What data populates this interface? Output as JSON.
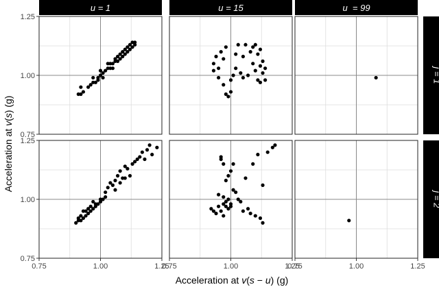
{
  "figure": {
    "background": "#ffffff",
    "panel_border": "#222222",
    "strip_fill": "#000000",
    "strip_text_color": "#ffffff",
    "point_color": "#000000",
    "ref_line_color": "#888888",
    "grid_color": "#dddddd"
  },
  "chart_data": {
    "type": "scatter",
    "xlabel_parts": [
      "Acceleration at ",
      "v",
      "(",
      "s",
      " − ",
      "u",
      ") (g)"
    ],
    "ylabel_parts": [
      "Acceleration at ",
      "v",
      "(",
      "s",
      ") (g)"
    ],
    "xlim": [
      0.75,
      1.25
    ],
    "ylim": [
      0.75,
      1.25
    ],
    "x_ticks": [
      0.75,
      1.0,
      1.25
    ],
    "y_ticks": [
      0.75,
      1.0,
      1.25
    ],
    "x_tick_labels": [
      "0.75",
      "1.00",
      "1.25"
    ],
    "y_tick_labels": [
      "0.75",
      "1.00",
      "1.25"
    ],
    "reference_lines": {
      "x": 1.0,
      "y": 1.0
    },
    "grid": true,
    "col_strips": [
      "u = 1",
      "u = 15",
      "u  = 99"
    ],
    "row_strips": [
      "j = 1",
      "j = 2"
    ],
    "panels": [
      {
        "row": 0,
        "col": 0,
        "points": [
          [
            0.91,
            0.92
          ],
          [
            0.92,
            0.92
          ],
          [
            0.92,
            0.95
          ],
          [
            0.93,
            0.93
          ],
          [
            0.95,
            0.95
          ],
          [
            0.96,
            0.96
          ],
          [
            0.97,
            0.97
          ],
          [
            0.98,
            0.97
          ],
          [
            0.99,
            0.99
          ],
          [
            0.99,
            0.98
          ],
          [
            1.0,
            1.0
          ],
          [
            1.01,
            1.01
          ],
          [
            1.01,
            0.99
          ],
          [
            1.02,
            1.02
          ],
          [
            1.03,
            1.03
          ],
          [
            1.04,
            1.03
          ],
          [
            1.04,
            1.05
          ],
          [
            1.05,
            1.05
          ],
          [
            1.06,
            1.06
          ],
          [
            1.06,
            1.07
          ],
          [
            1.07,
            1.08
          ],
          [
            1.07,
            1.06
          ],
          [
            1.08,
            1.09
          ],
          [
            1.08,
            1.07
          ],
          [
            1.09,
            1.1
          ],
          [
            1.09,
            1.08
          ],
          [
            1.1,
            1.11
          ],
          [
            1.1,
            1.09
          ],
          [
            1.11,
            1.12
          ],
          [
            1.11,
            1.1
          ],
          [
            1.12,
            1.13
          ],
          [
            1.12,
            1.11
          ],
          [
            1.13,
            1.14
          ],
          [
            1.13,
            1.12
          ],
          [
            1.14,
            1.14
          ],
          [
            1.14,
            1.13
          ],
          [
            0.97,
            0.99
          ],
          [
            1.0,
            1.02
          ],
          [
            1.03,
            1.05
          ],
          [
            1.05,
            1.03
          ]
        ]
      },
      {
        "row": 0,
        "col": 1,
        "points": [
          [
            0.93,
            1.05
          ],
          [
            0.93,
            1.02
          ],
          [
            0.94,
            1.08
          ],
          [
            0.95,
            0.99
          ],
          [
            0.96,
            1.1
          ],
          [
            0.97,
            0.96
          ],
          [
            0.98,
            1.12
          ],
          [
            0.98,
            0.92
          ],
          [
            0.99,
            0.91
          ],
          [
            1.0,
            0.93
          ],
          [
            1.0,
            0.98
          ],
          [
            1.01,
            1.0
          ],
          [
            1.02,
            1.03
          ],
          [
            1.03,
            1.13
          ],
          [
            1.04,
            1.01
          ],
          [
            1.05,
            0.99
          ],
          [
            1.05,
            1.08
          ],
          [
            1.06,
            1.13
          ],
          [
            1.07,
            1.0
          ],
          [
            1.08,
            1.1
          ],
          [
            1.09,
            1.12
          ],
          [
            1.09,
            1.05
          ],
          [
            1.1,
            1.13
          ],
          [
            1.1,
            1.02
          ],
          [
            1.11,
            0.98
          ],
          [
            1.11,
            1.09
          ],
          [
            1.12,
            1.04
          ],
          [
            1.12,
            0.97
          ],
          [
            1.13,
            1.06
          ],
          [
            1.13,
            1.01
          ],
          [
            1.14,
            0.98
          ],
          [
            1.14,
            1.03
          ],
          [
            0.95,
            1.03
          ],
          [
            0.97,
            1.07
          ],
          [
            1.02,
            1.09
          ],
          [
            1.12,
            1.11
          ]
        ]
      },
      {
        "row": 0,
        "col": 2,
        "points": [
          [
            1.08,
            0.99
          ]
        ]
      },
      {
        "row": 1,
        "col": 0,
        "points": [
          [
            0.9,
            0.9
          ],
          [
            0.91,
            0.91
          ],
          [
            0.91,
            0.92
          ],
          [
            0.92,
            0.91
          ],
          [
            0.92,
            0.93
          ],
          [
            0.93,
            0.92
          ],
          [
            0.94,
            0.93
          ],
          [
            0.94,
            0.95
          ],
          [
            0.95,
            0.94
          ],
          [
            0.95,
            0.96
          ],
          [
            0.96,
            0.95
          ],
          [
            0.96,
            0.97
          ],
          [
            0.97,
            0.96
          ],
          [
            0.98,
            0.98
          ],
          [
            0.98,
            0.97
          ],
          [
            0.99,
            0.98
          ],
          [
            1.0,
            1.0
          ],
          [
            1.0,
            0.99
          ],
          [
            1.01,
            1.0
          ],
          [
            1.02,
            1.03
          ],
          [
            1.03,
            1.05
          ],
          [
            1.04,
            1.07
          ],
          [
            1.05,
            1.06
          ],
          [
            1.06,
            1.08
          ],
          [
            1.06,
            1.04
          ],
          [
            1.07,
            1.1
          ],
          [
            1.08,
            1.12
          ],
          [
            1.08,
            1.07
          ],
          [
            1.09,
            1.09
          ],
          [
            1.1,
            1.14
          ],
          [
            1.11,
            1.13
          ],
          [
            1.12,
            1.1
          ],
          [
            1.13,
            1.15
          ],
          [
            1.14,
            1.16
          ],
          [
            1.15,
            1.17
          ],
          [
            1.16,
            1.18
          ],
          [
            1.17,
            1.2
          ],
          [
            1.18,
            1.17
          ],
          [
            1.19,
            1.21
          ],
          [
            1.2,
            1.23
          ],
          [
            1.21,
            1.19
          ],
          [
            1.23,
            1.22
          ],
          [
            0.93,
            0.95
          ],
          [
            0.97,
            0.99
          ],
          [
            1.02,
            1.01
          ],
          [
            1.1,
            1.09
          ]
        ]
      },
      {
        "row": 1,
        "col": 1,
        "points": [
          [
            0.92,
            0.96
          ],
          [
            0.93,
            0.95
          ],
          [
            0.94,
            0.94
          ],
          [
            0.95,
            0.97
          ],
          [
            0.96,
            1.18
          ],
          [
            0.96,
            1.17
          ],
          [
            0.97,
            1.15
          ],
          [
            0.97,
            0.93
          ],
          [
            0.97,
            0.98
          ],
          [
            0.98,
            0.97
          ],
          [
            0.98,
            0.99
          ],
          [
            0.98,
            1.08
          ],
          [
            0.99,
            1.1
          ],
          [
            0.99,
            0.96
          ],
          [
            0.99,
            1.0
          ],
          [
            1.0,
            0.98
          ],
          [
            1.0,
            0.97
          ],
          [
            1.0,
            1.12
          ],
          [
            1.01,
            1.04
          ],
          [
            1.01,
            1.15
          ],
          [
            1.02,
            1.03
          ],
          [
            1.03,
            1.0
          ],
          [
            1.04,
            0.99
          ],
          [
            1.05,
            0.95
          ],
          [
            1.06,
            1.09
          ],
          [
            1.07,
            0.96
          ],
          [
            1.08,
            0.94
          ],
          [
            1.09,
            1.15
          ],
          [
            1.1,
            0.93
          ],
          [
            1.11,
            1.19
          ],
          [
            1.12,
            0.92
          ],
          [
            1.13,
            1.06
          ],
          [
            1.13,
            0.9
          ],
          [
            1.15,
            1.2
          ],
          [
            1.17,
            1.22
          ],
          [
            1.18,
            1.23
          ],
          [
            0.95,
            1.02
          ],
          [
            0.96,
            0.95
          ],
          [
            0.97,
            1.01
          ]
        ]
      },
      {
        "row": 1,
        "col": 2,
        "points": [
          [
            0.97,
            0.91
          ]
        ]
      }
    ]
  }
}
